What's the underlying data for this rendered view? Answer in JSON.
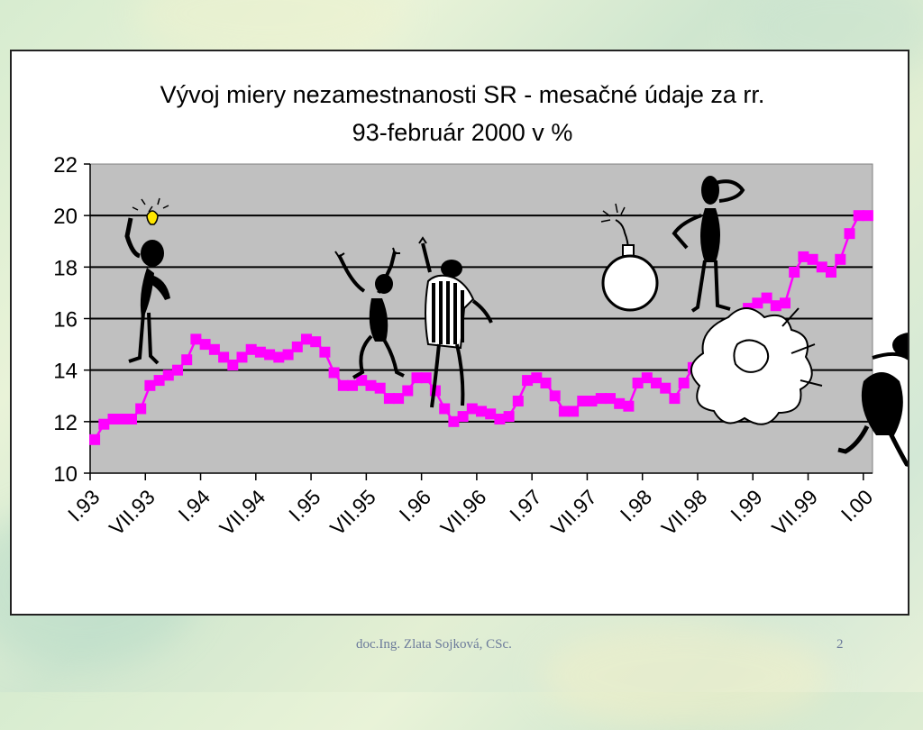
{
  "slide": {
    "footer_author": "doc.Ing. Zlata Sojková, CSc.",
    "page_number": "2"
  },
  "chart_data": {
    "type": "line",
    "title_line1": "Vývoj miery nezamestnanosti SR - mesačné údaje za rr.",
    "title_line2": "93-február 2000 v %",
    "xlabel": "",
    "ylabel": "",
    "ylim": [
      10,
      22
    ],
    "yticks": [
      10,
      12,
      14,
      16,
      18,
      20,
      22
    ],
    "xtick_labels": [
      "I.93",
      "VII.93",
      "I.94",
      "VII.94",
      "I.95",
      "VII.95",
      "I.96",
      "VII.96",
      "I.97",
      "VII.97",
      "I.98",
      "VII.98",
      "I.99",
      "VII.99",
      "I.00"
    ],
    "grid": true,
    "series_color": "#ff00ff",
    "plot_background": "#c0c0c0",
    "series": [
      {
        "values": [
          11.3,
          11.9,
          12.1,
          12.1,
          12.1,
          12.5,
          13.4,
          13.6,
          13.8,
          14.0,
          14.4,
          15.2,
          15.0,
          14.8,
          14.5,
          14.2,
          14.5,
          14.8,
          14.7,
          14.6,
          14.5,
          14.6,
          14.9,
          15.2,
          15.1,
          14.7,
          13.9,
          13.4,
          13.4,
          13.6,
          13.4,
          13.3,
          12.9,
          12.9,
          13.2,
          13.7,
          13.7,
          13.2,
          12.5,
          12.0,
          12.2,
          12.5,
          12.4,
          12.3,
          12.1,
          12.2,
          12.8,
          13.6,
          13.7,
          13.5,
          13.0,
          12.4,
          12.4,
          12.8,
          12.8,
          12.9,
          12.9,
          12.7,
          12.6,
          13.5,
          13.7,
          13.5,
          13.3,
          12.9,
          13.5,
          14.1,
          14.0,
          13.8,
          13.9,
          14.6,
          15.8,
          16.4,
          16.6,
          16.8,
          16.5,
          16.6,
          17.8,
          18.4,
          18.3,
          18.0,
          17.8,
          18.3,
          19.3,
          20.0,
          20.0
        ]
      }
    ]
  },
  "illustrations": [
    {
      "icon": "idea-lightbulb-figure-icon"
    },
    {
      "icon": "cheering-figure-icon"
    },
    {
      "icon": "striped-shirt-figure-icon"
    },
    {
      "icon": "bomb-icon"
    },
    {
      "icon": "head-scratching-figure-icon"
    },
    {
      "icon": "explosion-cloud-icon"
    },
    {
      "icon": "running-figure-icon"
    }
  ]
}
